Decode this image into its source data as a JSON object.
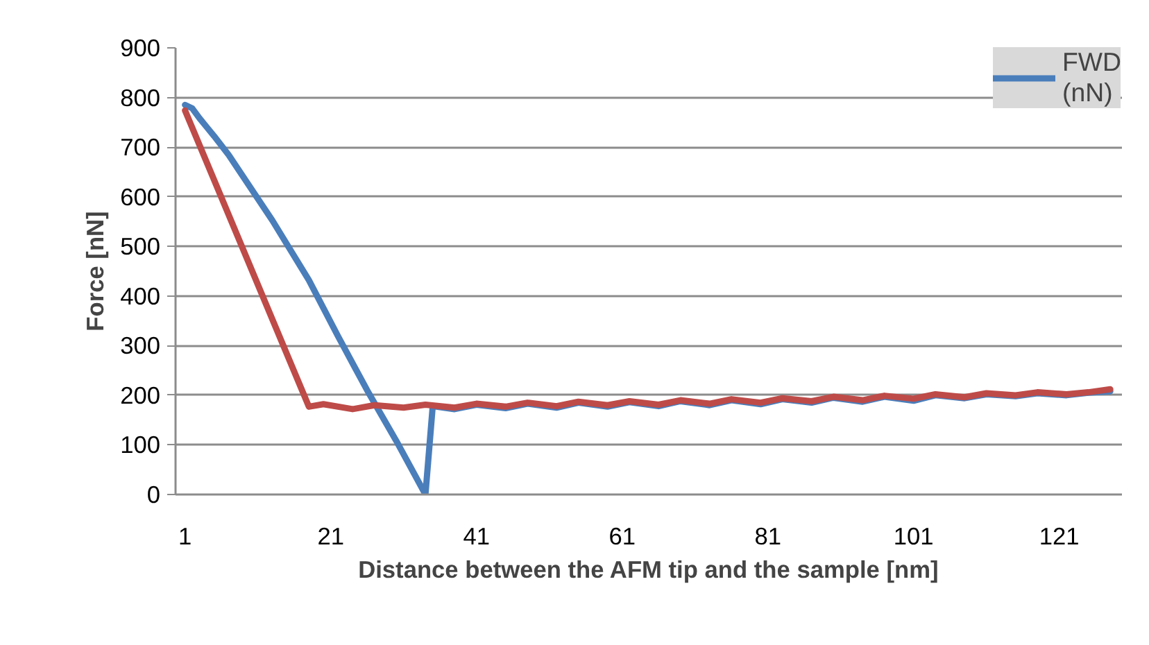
{
  "chart_data": {
    "type": "line",
    "xlabel": "Distance between the AFM tip and the sample [nm]",
    "ylabel": "Force [nN]",
    "xlim": [
      -0.3,
      129.6
    ],
    "xticks": [
      1,
      21,
      41,
      61,
      81,
      101,
      121
    ],
    "ylim": [
      0,
      900
    ],
    "yticks": [
      0,
      100,
      200,
      300,
      400,
      500,
      600,
      700,
      800,
      900
    ],
    "grid": "y",
    "legend": "top right",
    "marker": "none",
    "line_style": "solid",
    "series": [
      {
        "name": "FWD (nN)",
        "color": "#4a7ebb",
        "x": [
          1,
          2,
          3,
          4,
          5,
          7,
          9,
          13,
          18,
          22,
          26,
          30,
          34,
          35,
          38,
          41,
          45,
          48,
          52,
          55,
          59,
          62,
          66,
          69,
          73,
          76,
          80,
          83,
          87,
          90,
          94,
          97,
          101,
          104,
          108,
          111,
          115,
          118,
          122,
          125,
          128
        ],
        "values": [
          785,
          778,
          758,
          740,
          722,
          684,
          640,
          552,
          432,
          319,
          210,
          108,
          0,
          178,
          172,
          181,
          174,
          183,
          175,
          185,
          177,
          186,
          178,
          188,
          180,
          190,
          182,
          192,
          185,
          195,
          187,
          197,
          189,
          200,
          194,
          202,
          198,
          204,
          200,
          205,
          208
        ]
      },
      {
        "color": "#be4b48",
        "x": [
          1,
          18,
          20,
          24,
          27,
          31,
          34,
          38,
          41,
          45,
          48,
          52,
          55,
          59,
          62,
          66,
          69,
          73,
          76,
          80,
          83,
          87,
          90,
          94,
          97,
          101,
          104,
          108,
          111,
          115,
          118,
          122,
          125,
          128
        ],
        "values": [
          774,
          177,
          182,
          172,
          180,
          175,
          181,
          175,
          183,
          177,
          185,
          178,
          187,
          180,
          188,
          181,
          190,
          183,
          192,
          185,
          194,
          188,
          197,
          190,
          199,
          193,
          202,
          196,
          204,
          200,
          206,
          202,
          206,
          212
        ]
      }
    ]
  }
}
